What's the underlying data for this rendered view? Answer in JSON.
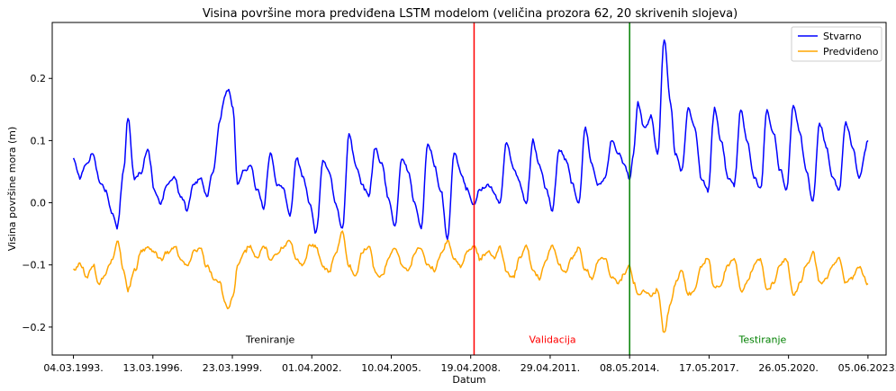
{
  "chart_data": {
    "type": "line",
    "title": "Visina površine mora predviđena LSTM modelom (veličina prozora 62, 20 skrivenih slojeva)",
    "xlabel": "Datum",
    "ylabel": "Visina površine mora (m)",
    "ylim": [
      -0.245,
      0.29
    ],
    "xlim": [
      "1992-05-13",
      "2024-02-12"
    ],
    "yticks": [
      -0.2,
      -0.1,
      0.0,
      0.1,
      0.2
    ],
    "ytick_labels": [
      "−0.2",
      "−0.1",
      "0.0",
      "0.1",
      "0.2"
    ],
    "xticks": [
      "1993-03-04",
      "1996-03-13",
      "1999-03-23",
      "2002-04-01",
      "2005-04-10",
      "2008-04-19",
      "2011-04-29",
      "2014-05-08",
      "2017-05-17",
      "2020-05-26",
      "2023-06-05"
    ],
    "xtick_labels": [
      "04.03.1993.",
      "13.03.1996.",
      "23.03.1999.",
      "01.04.2002.",
      "10.04.2005.",
      "19.04.2008.",
      "29.04.2011.",
      "08.05.2014.",
      "17.05.2017.",
      "26.05.2020.",
      "05.06.2023."
    ],
    "grid": false,
    "legend_position": "top-right",
    "series": [
      {
        "name": "Stvarno",
        "color": "#0000ff",
        "points": [
          [
            "1993-03-04",
            0.07
          ],
          [
            "1993-06-01",
            0.04
          ],
          [
            "1993-09-01",
            0.06
          ],
          [
            "1993-12-01",
            0.08
          ],
          [
            "1994-03-01",
            0.03
          ],
          [
            "1994-06-01",
            0.02
          ],
          [
            "1994-09-01",
            -0.02
          ],
          [
            "1994-11-01",
            -0.04
          ],
          [
            "1995-02-01",
            0.05
          ],
          [
            "1995-04-01",
            0.14
          ],
          [
            "1995-07-01",
            0.04
          ],
          [
            "1995-10-01",
            0.05
          ],
          [
            "1996-01-01",
            0.09
          ],
          [
            "1996-04-01",
            0.02
          ],
          [
            "1996-07-01",
            0.0
          ],
          [
            "1996-10-01",
            0.03
          ],
          [
            "1997-01-01",
            0.04
          ],
          [
            "1997-04-01",
            0.01
          ],
          [
            "1997-07-01",
            -0.01
          ],
          [
            "1997-10-01",
            0.03
          ],
          [
            "1998-01-01",
            0.04
          ],
          [
            "1998-04-01",
            0.01
          ],
          [
            "1998-07-01",
            0.05
          ],
          [
            "1998-10-01",
            0.13
          ],
          [
            "1998-12-01",
            0.17
          ],
          [
            "1999-02-01",
            0.18
          ],
          [
            "1999-04-01",
            0.15
          ],
          [
            "1999-06-01",
            0.03
          ],
          [
            "1999-09-01",
            0.05
          ],
          [
            "1999-12-01",
            0.06
          ],
          [
            "2000-03-01",
            0.02
          ],
          [
            "2000-06-01",
            -0.01
          ],
          [
            "2000-09-01",
            0.08
          ],
          [
            "2000-12-01",
            0.03
          ],
          [
            "2001-03-01",
            0.02
          ],
          [
            "2001-06-01",
            -0.02
          ],
          [
            "2001-09-01",
            0.07
          ],
          [
            "2001-12-01",
            0.04
          ],
          [
            "2002-03-01",
            0.0
          ],
          [
            "2002-06-01",
            -0.05
          ],
          [
            "2002-09-01",
            0.07
          ],
          [
            "2002-12-01",
            0.05
          ],
          [
            "2003-03-01",
            0.0
          ],
          [
            "2003-06-01",
            -0.04
          ],
          [
            "2003-09-01",
            0.11
          ],
          [
            "2003-12-01",
            0.06
          ],
          [
            "2004-03-01",
            0.03
          ],
          [
            "2004-06-01",
            0.01
          ],
          [
            "2004-09-01",
            0.09
          ],
          [
            "2004-12-01",
            0.06
          ],
          [
            "2005-03-01",
            0.01
          ],
          [
            "2005-06-01",
            -0.04
          ],
          [
            "2005-09-01",
            0.07
          ],
          [
            "2005-12-01",
            0.05
          ],
          [
            "2006-03-01",
            0.0
          ],
          [
            "2006-06-01",
            -0.04
          ],
          [
            "2006-09-01",
            0.1
          ],
          [
            "2006-12-01",
            0.06
          ],
          [
            "2007-03-01",
            0.02
          ],
          [
            "2007-06-01",
            -0.06
          ],
          [
            "2007-09-01",
            0.08
          ],
          [
            "2007-12-01",
            0.05
          ],
          [
            "2008-03-01",
            0.02
          ],
          [
            "2008-06-01",
            0.0
          ],
          [
            "2008-09-01",
            0.02
          ],
          [
            "2008-12-01",
            0.03
          ],
          [
            "2009-03-01",
            0.02
          ],
          [
            "2009-06-01",
            0.0
          ],
          [
            "2009-09-01",
            0.1
          ],
          [
            "2009-12-01",
            0.06
          ],
          [
            "2010-03-01",
            0.03
          ],
          [
            "2010-06-01",
            0.0
          ],
          [
            "2010-09-01",
            0.1
          ],
          [
            "2010-12-01",
            0.06
          ],
          [
            "2011-03-01",
            0.02
          ],
          [
            "2011-06-01",
            -0.01
          ],
          [
            "2011-09-01",
            0.09
          ],
          [
            "2011-12-01",
            0.07
          ],
          [
            "2012-03-01",
            0.03
          ],
          [
            "2012-06-01",
            0.0
          ],
          [
            "2012-09-01",
            0.12
          ],
          [
            "2012-12-01",
            0.06
          ],
          [
            "2013-03-01",
            0.03
          ],
          [
            "2013-06-01",
            0.04
          ],
          [
            "2013-09-01",
            0.1
          ],
          [
            "2013-12-01",
            0.08
          ],
          [
            "2014-03-01",
            0.06
          ],
          [
            "2014-05-08",
            0.04
          ],
          [
            "2014-07-01",
            0.08
          ],
          [
            "2014-09-01",
            0.16
          ],
          [
            "2014-12-01",
            0.12
          ],
          [
            "2015-03-01",
            0.14
          ],
          [
            "2015-06-01",
            0.08
          ],
          [
            "2015-09-01",
            0.26
          ],
          [
            "2015-12-01",
            0.16
          ],
          [
            "2016-02-01",
            0.08
          ],
          [
            "2016-05-01",
            0.05
          ],
          [
            "2016-08-01",
            0.15
          ],
          [
            "2016-11-01",
            0.12
          ],
          [
            "2017-02-01",
            0.04
          ],
          [
            "2017-05-01",
            0.02
          ],
          [
            "2017-08-01",
            0.15
          ],
          [
            "2017-11-01",
            0.1
          ],
          [
            "2018-02-01",
            0.04
          ],
          [
            "2018-05-01",
            0.03
          ],
          [
            "2018-08-01",
            0.15
          ],
          [
            "2018-11-01",
            0.1
          ],
          [
            "2019-02-01",
            0.04
          ],
          [
            "2019-05-01",
            0.02
          ],
          [
            "2019-08-01",
            0.15
          ],
          [
            "2019-11-01",
            0.11
          ],
          [
            "2020-02-01",
            0.05
          ],
          [
            "2020-05-01",
            0.02
          ],
          [
            "2020-08-01",
            0.16
          ],
          [
            "2020-11-01",
            0.11
          ],
          [
            "2021-02-01",
            0.05
          ],
          [
            "2021-05-01",
            0.0
          ],
          [
            "2021-08-01",
            0.13
          ],
          [
            "2021-11-01",
            0.09
          ],
          [
            "2022-02-01",
            0.04
          ],
          [
            "2022-05-01",
            0.02
          ],
          [
            "2022-08-01",
            0.13
          ],
          [
            "2022-11-01",
            0.09
          ],
          [
            "2023-02-01",
            0.04
          ],
          [
            "2023-06-05",
            0.1
          ]
        ]
      },
      {
        "name": "Predviđeno",
        "color": "#ffa500",
        "points": [
          [
            "1993-03-04",
            -0.11
          ],
          [
            "1993-06-01",
            -0.1
          ],
          [
            "1993-09-01",
            -0.12
          ],
          [
            "1993-12-01",
            -0.1
          ],
          [
            "1994-03-01",
            -0.13
          ],
          [
            "1994-06-01",
            -0.11
          ],
          [
            "1994-09-01",
            -0.09
          ],
          [
            "1994-11-01",
            -0.06
          ],
          [
            "1995-02-01",
            -0.11
          ],
          [
            "1995-04-01",
            -0.14
          ],
          [
            "1995-07-01",
            -0.11
          ],
          [
            "1995-10-01",
            -0.08
          ],
          [
            "1996-01-01",
            -0.07
          ],
          [
            "1996-04-01",
            -0.08
          ],
          [
            "1996-07-01",
            -0.09
          ],
          [
            "1996-10-01",
            -0.08
          ],
          [
            "1997-01-01",
            -0.07
          ],
          [
            "1997-04-01",
            -0.09
          ],
          [
            "1997-07-01",
            -0.1
          ],
          [
            "1997-10-01",
            -0.08
          ],
          [
            "1998-01-01",
            -0.07
          ],
          [
            "1998-04-01",
            -0.1
          ],
          [
            "1998-07-01",
            -0.12
          ],
          [
            "1998-10-01",
            -0.13
          ],
          [
            "1998-12-01",
            -0.16
          ],
          [
            "1999-02-01",
            -0.17
          ],
          [
            "1999-04-01",
            -0.15
          ],
          [
            "1999-06-01",
            -0.1
          ],
          [
            "1999-09-01",
            -0.08
          ],
          [
            "1999-12-01",
            -0.07
          ],
          [
            "2000-03-01",
            -0.09
          ],
          [
            "2000-06-01",
            -0.07
          ],
          [
            "2000-09-01",
            -0.09
          ],
          [
            "2000-12-01",
            -0.08
          ],
          [
            "2001-03-01",
            -0.07
          ],
          [
            "2001-06-01",
            -0.06
          ],
          [
            "2001-09-01",
            -0.09
          ],
          [
            "2001-12-01",
            -0.1
          ],
          [
            "2002-03-01",
            -0.07
          ],
          [
            "2002-06-01",
            -0.07
          ],
          [
            "2002-09-01",
            -0.1
          ],
          [
            "2002-12-01",
            -0.11
          ],
          [
            "2003-03-01",
            -0.08
          ],
          [
            "2003-06-01",
            -0.05
          ],
          [
            "2003-09-01",
            -0.1
          ],
          [
            "2003-12-01",
            -0.12
          ],
          [
            "2004-03-01",
            -0.08
          ],
          [
            "2004-06-01",
            -0.07
          ],
          [
            "2004-09-01",
            -0.11
          ],
          [
            "2004-12-01",
            -0.12
          ],
          [
            "2005-03-01",
            -0.09
          ],
          [
            "2005-06-01",
            -0.07
          ],
          [
            "2005-09-01",
            -0.1
          ],
          [
            "2005-12-01",
            -0.11
          ],
          [
            "2006-03-01",
            -0.08
          ],
          [
            "2006-06-01",
            -0.07
          ],
          [
            "2006-09-01",
            -0.1
          ],
          [
            "2006-12-01",
            -0.11
          ],
          [
            "2007-03-01",
            -0.08
          ],
          [
            "2007-06-01",
            -0.06
          ],
          [
            "2007-09-01",
            -0.09
          ],
          [
            "2007-12-01",
            -0.1
          ],
          [
            "2008-03-01",
            -0.08
          ],
          [
            "2008-06-01",
            -0.07
          ],
          [
            "2008-09-01",
            -0.09
          ],
          [
            "2008-12-01",
            -0.08
          ],
          [
            "2009-03-01",
            -0.09
          ],
          [
            "2009-06-01",
            -0.07
          ],
          [
            "2009-09-01",
            -0.11
          ],
          [
            "2009-12-01",
            -0.12
          ],
          [
            "2010-03-01",
            -0.09
          ],
          [
            "2010-06-01",
            -0.07
          ],
          [
            "2010-09-01",
            -0.11
          ],
          [
            "2010-12-01",
            -0.12
          ],
          [
            "2011-03-01",
            -0.09
          ],
          [
            "2011-06-01",
            -0.07
          ],
          [
            "2011-09-01",
            -0.1
          ],
          [
            "2011-12-01",
            -0.11
          ],
          [
            "2012-03-01",
            -0.09
          ],
          [
            "2012-06-01",
            -0.07
          ],
          [
            "2012-09-01",
            -0.11
          ],
          [
            "2012-12-01",
            -0.12
          ],
          [
            "2013-03-01",
            -0.09
          ],
          [
            "2013-06-01",
            -0.09
          ],
          [
            "2013-09-01",
            -0.12
          ],
          [
            "2013-12-01",
            -0.13
          ],
          [
            "2014-03-01",
            -0.11
          ],
          [
            "2014-05-08",
            -0.1
          ],
          [
            "2014-07-01",
            -0.13
          ],
          [
            "2014-09-01",
            -0.15
          ],
          [
            "2014-12-01",
            -0.14
          ],
          [
            "2015-03-01",
            -0.15
          ],
          [
            "2015-06-01",
            -0.14
          ],
          [
            "2015-09-01",
            -0.21
          ],
          [
            "2015-12-01",
            -0.16
          ],
          [
            "2016-02-01",
            -0.13
          ],
          [
            "2016-05-01",
            -0.11
          ],
          [
            "2016-08-01",
            -0.15
          ],
          [
            "2016-11-01",
            -0.14
          ],
          [
            "2017-02-01",
            -0.1
          ],
          [
            "2017-05-01",
            -0.09
          ],
          [
            "2017-08-01",
            -0.14
          ],
          [
            "2017-11-01",
            -0.13
          ],
          [
            "2018-02-01",
            -0.1
          ],
          [
            "2018-05-01",
            -0.09
          ],
          [
            "2018-08-01",
            -0.14
          ],
          [
            "2018-11-01",
            -0.13
          ],
          [
            "2019-02-01",
            -0.1
          ],
          [
            "2019-05-01",
            -0.09
          ],
          [
            "2019-08-01",
            -0.14
          ],
          [
            "2019-11-01",
            -0.13
          ],
          [
            "2020-02-01",
            -0.1
          ],
          [
            "2020-05-01",
            -0.09
          ],
          [
            "2020-08-01",
            -0.15
          ],
          [
            "2020-11-01",
            -0.13
          ],
          [
            "2021-02-01",
            -0.1
          ],
          [
            "2021-05-01",
            -0.08
          ],
          [
            "2021-08-01",
            -0.13
          ],
          [
            "2021-11-01",
            -0.12
          ],
          [
            "2022-02-01",
            -0.1
          ],
          [
            "2022-05-01",
            -0.09
          ],
          [
            "2022-08-01",
            -0.13
          ],
          [
            "2022-11-01",
            -0.12
          ],
          [
            "2023-02-01",
            -0.1
          ],
          [
            "2023-06-05",
            -0.13
          ]
        ]
      }
    ],
    "vlines": [
      {
        "date": "2008-06-05",
        "color": "#ff0000"
      },
      {
        "date": "2014-05-08",
        "color": "#008000"
      }
    ],
    "annotations": [
      {
        "text": "Treniranje",
        "date": "2000-09-01",
        "y": -0.22,
        "color": "#000000"
      },
      {
        "text": "Validacija",
        "date": "2011-06-01",
        "y": -0.22,
        "color": "#ff0000"
      },
      {
        "text": "Testiranje",
        "date": "2019-06-01",
        "y": -0.22,
        "color": "#008000"
      }
    ]
  }
}
